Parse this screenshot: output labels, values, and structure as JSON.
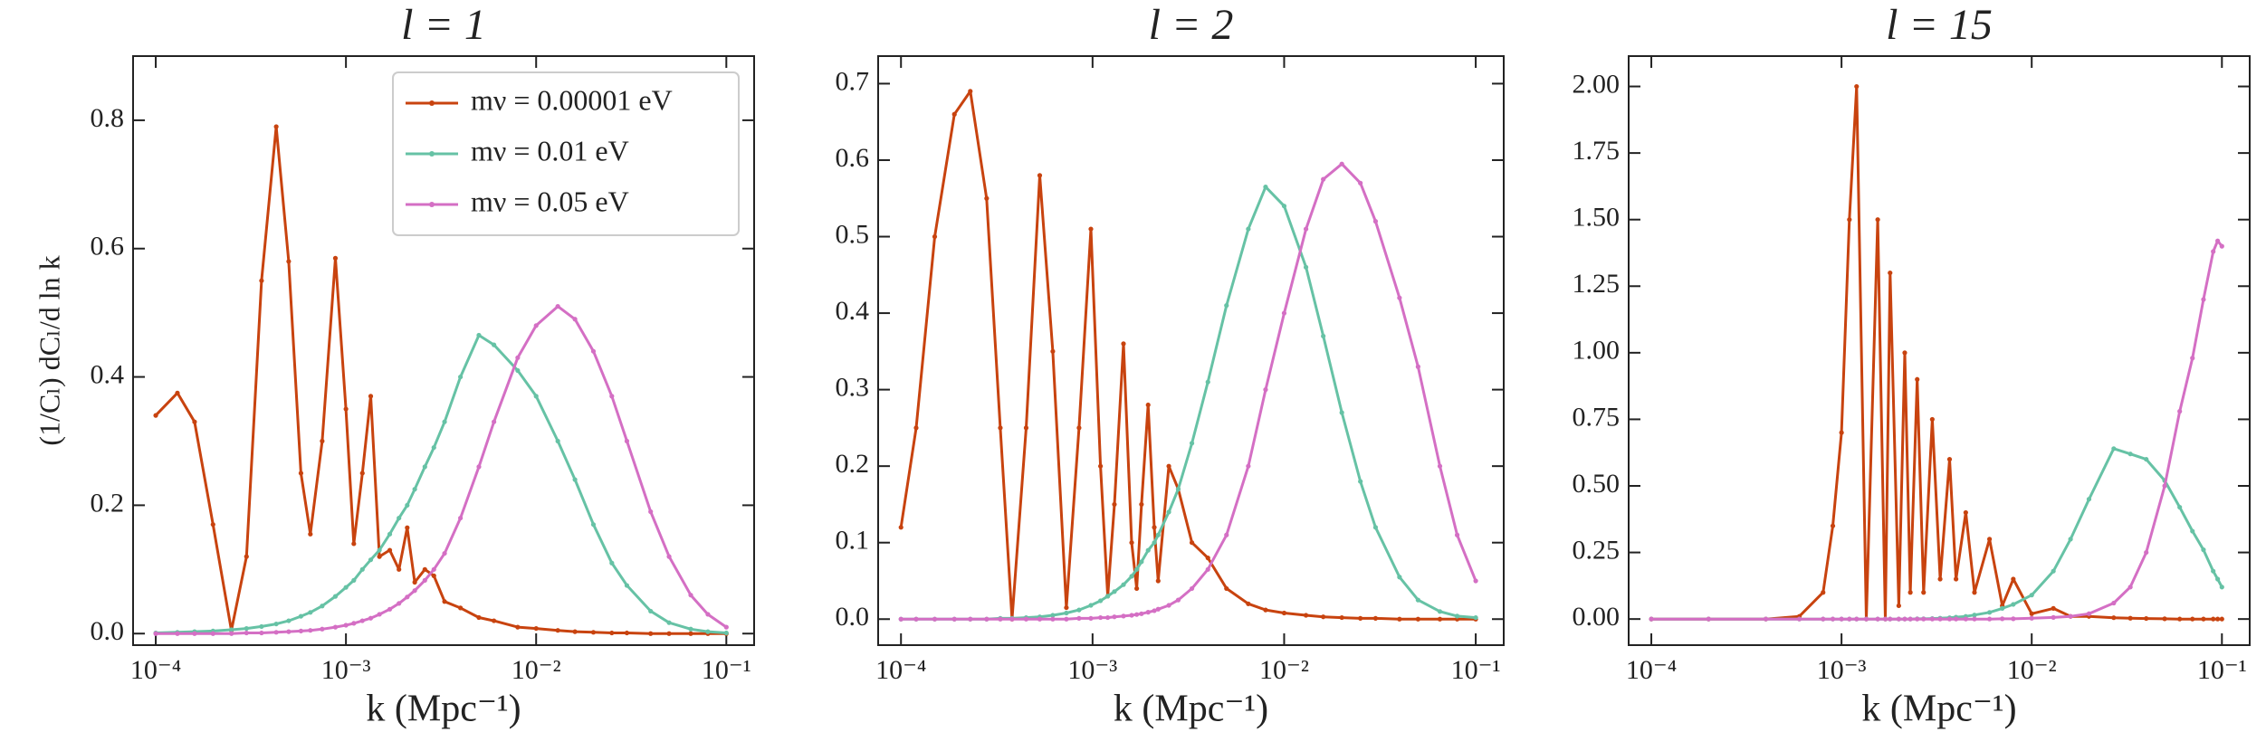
{
  "chart_data": [
    {
      "type": "line",
      "title": "l = 1",
      "x_label": "k  (Mpc⁻¹)",
      "y_label": "(1/Cₗ) dCₗ/d ln k",
      "xscale": "log",
      "xlim": [
        7.6e-05,
        0.14
      ],
      "xticks": [
        {
          "value": 0.0001,
          "label": "10⁻⁴"
        },
        {
          "value": 0.001,
          "label": "10⁻³"
        },
        {
          "value": 0.01,
          "label": "10⁻²"
        },
        {
          "value": 0.1,
          "label": "10⁻¹"
        }
      ],
      "ylim": [
        -0.018,
        0.9
      ],
      "yticks": [
        {
          "value": 0,
          "label": "0.0"
        },
        0.2,
        0.4,
        0.6,
        0.8
      ],
      "legend": "upper right",
      "x": [
        0.0001,
        0.00013,
        0.00016,
        0.0002,
        0.00025,
        0.0003,
        0.00036,
        0.00043,
        0.0005,
        0.00058,
        0.00065,
        0.00075,
        0.00088,
        0.001,
        0.0011,
        0.00122,
        0.00135,
        0.0015,
        0.0017,
        0.0019,
        0.0021,
        0.0023,
        0.0026,
        0.0029,
        0.0033,
        0.004,
        0.005,
        0.006,
        0.008,
        0.01,
        0.013,
        0.016,
        0.02,
        0.025,
        0.03,
        0.04,
        0.05,
        0.065,
        0.08,
        0.1
      ],
      "series": [
        {
          "name": "mν = 0.00001 eV",
          "color": "#c8430f",
          "values": [
            0.34,
            0.375,
            0.33,
            0.17,
            0.005,
            0.12,
            0.55,
            0.79,
            0.58,
            0.25,
            0.155,
            0.3,
            0.585,
            0.35,
            0.14,
            0.25,
            0.37,
            0.12,
            0.13,
            0.1,
            0.165,
            0.08,
            0.1,
            0.09,
            0.05,
            0.04,
            0.025,
            0.02,
            0.01,
            0.008,
            0.005,
            0.003,
            0.002,
            0.001,
            0.001,
            0,
            0,
            0,
            0,
            0
          ]
        },
        {
          "name": "mν = 0.01 eV",
          "color": "#66c2a5",
          "values": [
            0.001,
            0.002,
            0.003,
            0.004,
            0.006,
            0.008,
            0.011,
            0.015,
            0.02,
            0.027,
            0.033,
            0.043,
            0.058,
            0.072,
            0.083,
            0.1,
            0.115,
            0.13,
            0.155,
            0.18,
            0.2,
            0.225,
            0.26,
            0.29,
            0.33,
            0.4,
            0.465,
            0.45,
            0.41,
            0.37,
            0.3,
            0.24,
            0.17,
            0.11,
            0.075,
            0.035,
            0.017,
            0.007,
            0.003,
            0.001
          ]
        },
        {
          "name": "mν = 0.05 eV",
          "color": "#d46fc4",
          "values": [
            0,
            0,
            0,
            0,
            0,
            0.001,
            0.001,
            0.002,
            0.003,
            0.004,
            0.005,
            0.007,
            0.01,
            0.013,
            0.016,
            0.02,
            0.024,
            0.03,
            0.038,
            0.047,
            0.057,
            0.067,
            0.083,
            0.1,
            0.125,
            0.18,
            0.26,
            0.33,
            0.43,
            0.48,
            0.51,
            0.49,
            0.44,
            0.37,
            0.3,
            0.19,
            0.12,
            0.06,
            0.03,
            0.01
          ]
        }
      ]
    },
    {
      "type": "line",
      "title": "l = 2",
      "x_label": "k  (Mpc⁻¹)",
      "xscale": "log",
      "xlim": [
        7.6e-05,
        0.14
      ],
      "xticks": [
        {
          "value": 0.0001,
          "label": "10⁻⁴"
        },
        {
          "value": 0.001,
          "label": "10⁻³"
        },
        {
          "value": 0.01,
          "label": "10⁻²"
        },
        {
          "value": 0.1,
          "label": "10⁻¹"
        }
      ],
      "ylim": [
        -0.034,
        0.736
      ],
      "yticks": [
        {
          "value": 0,
          "label": "0.0"
        },
        0.1,
        0.2,
        0.3,
        0.4,
        0.5,
        0.6,
        0.7
      ],
      "x": [
        0.0001,
        0.00012,
        0.00015,
        0.00019,
        0.00023,
        0.00028,
        0.00033,
        0.00038,
        0.00045,
        0.00053,
        0.00062,
        0.00073,
        0.00085,
        0.00098,
        0.0011,
        0.0012,
        0.0013,
        0.00145,
        0.0016,
        0.0017,
        0.0018,
        0.00195,
        0.0021,
        0.0022,
        0.0025,
        0.0028,
        0.0033,
        0.004,
        0.005,
        0.0065,
        0.008,
        0.01,
        0.013,
        0.016,
        0.02,
        0.025,
        0.03,
        0.04,
        0.05,
        0.065,
        0.08,
        0.1
      ],
      "series": [
        {
          "color": "#c8430f",
          "values": [
            0.12,
            0.25,
            0.5,
            0.66,
            0.69,
            0.55,
            0.25,
            0,
            0.25,
            0.58,
            0.35,
            0.015,
            0.25,
            0.51,
            0.2,
            0.03,
            0.15,
            0.36,
            0.1,
            0.04,
            0.15,
            0.28,
            0.12,
            0.05,
            0.2,
            0.17,
            0.1,
            0.08,
            0.04,
            0.02,
            0.012,
            0.008,
            0.005,
            0.003,
            0.002,
            0.001,
            0.001,
            0,
            0,
            0,
            0,
            0
          ]
        },
        {
          "color": "#66c2a5",
          "values": [
            0,
            0,
            0,
            0,
            0,
            0,
            0.001,
            0.001,
            0.002,
            0.003,
            0.005,
            0.008,
            0.012,
            0.018,
            0.024,
            0.03,
            0.036,
            0.045,
            0.056,
            0.065,
            0.075,
            0.09,
            0.1,
            0.11,
            0.14,
            0.17,
            0.23,
            0.31,
            0.41,
            0.51,
            0.565,
            0.54,
            0.46,
            0.37,
            0.27,
            0.18,
            0.12,
            0.055,
            0.025,
            0.01,
            0.004,
            0.002
          ]
        },
        {
          "color": "#d46fc4",
          "values": [
            0,
            0,
            0,
            0,
            0,
            0,
            0,
            0,
            0,
            0,
            0,
            0,
            0.001,
            0.001,
            0.002,
            0.002,
            0.003,
            0.004,
            0.005,
            0.006,
            0.007,
            0.009,
            0.011,
            0.013,
            0.018,
            0.025,
            0.04,
            0.065,
            0.11,
            0.2,
            0.3,
            0.4,
            0.51,
            0.575,
            0.595,
            0.57,
            0.52,
            0.42,
            0.33,
            0.2,
            0.11,
            0.05
          ]
        }
      ]
    },
    {
      "type": "line",
      "title": "l = 15",
      "x_label": "k  (Mpc⁻¹)",
      "xscale": "log",
      "xlim": [
        7.6e-05,
        0.14
      ],
      "xticks": [
        {
          "value": 0.0001,
          "label": "10⁻⁴"
        },
        {
          "value": 0.001,
          "label": "10⁻³"
        },
        {
          "value": 0.01,
          "label": "10⁻²"
        },
        {
          "value": 0.1,
          "label": "10⁻¹"
        }
      ],
      "ylim": [
        -0.098,
        2.114
      ],
      "yticks": [
        {
          "value": 0,
          "label": "0.00"
        },
        0.25,
        {
          "value": 0.5,
          "label": "0.50"
        },
        0.75,
        {
          "value": 1,
          "label": "1.00"
        },
        1.25,
        {
          "value": 1.5,
          "label": "1.50"
        },
        1.75,
        {
          "value": 2,
          "label": "2.00"
        }
      ],
      "x": [
        0.0001,
        0.0002,
        0.0004,
        0.0006,
        0.0008,
        0.0009,
        0.001,
        0.0011,
        0.0012,
        0.00135,
        0.00155,
        0.0017,
        0.0018,
        0.002,
        0.00215,
        0.0023,
        0.0025,
        0.0027,
        0.003,
        0.0033,
        0.0037,
        0.004,
        0.0045,
        0.005,
        0.006,
        0.007,
        0.008,
        0.01,
        0.013,
        0.016,
        0.02,
        0.027,
        0.033,
        0.04,
        0.05,
        0.06,
        0.07,
        0.08,
        0.09,
        0.095,
        0.1
      ],
      "series": [
        {
          "color": "#c8430f",
          "values": [
            0,
            0,
            0,
            0.01,
            0.1,
            0.35,
            0.7,
            1.5,
            2.0,
            0,
            1.5,
            0,
            1.3,
            0.05,
            1.0,
            0.1,
            0.9,
            0.1,
            0.75,
            0.15,
            0.6,
            0.15,
            0.4,
            0.1,
            0.3,
            0.05,
            0.15,
            0.02,
            0.04,
            0.01,
            0.01,
            0.005,
            0.003,
            0.002,
            0.001,
            0,
            0,
            0,
            0,
            0,
            0
          ]
        },
        {
          "color": "#66c2a5",
          "values": [
            0,
            0,
            0,
            0,
            0,
            0,
            0,
            0,
            0,
            0,
            0,
            0,
            0,
            0,
            0,
            0,
            0.001,
            0.001,
            0.002,
            0.003,
            0.005,
            0.007,
            0.01,
            0.015,
            0.025,
            0.04,
            0.055,
            0.09,
            0.18,
            0.3,
            0.45,
            0.64,
            0.62,
            0.6,
            0.52,
            0.42,
            0.33,
            0.26,
            0.18,
            0.15,
            0.12
          ]
        },
        {
          "color": "#d46fc4",
          "values": [
            0,
            0,
            0,
            0,
            0,
            0,
            0,
            0,
            0,
            0,
            0,
            0,
            0,
            0,
            0,
            0,
            0,
            0,
            0,
            0,
            0,
            0,
            0,
            0,
            0,
            0.001,
            0.001,
            0.003,
            0.006,
            0.01,
            0.02,
            0.06,
            0.12,
            0.25,
            0.5,
            0.78,
            0.98,
            1.2,
            1.38,
            1.42,
            1.4
          ]
        }
      ]
    }
  ]
}
